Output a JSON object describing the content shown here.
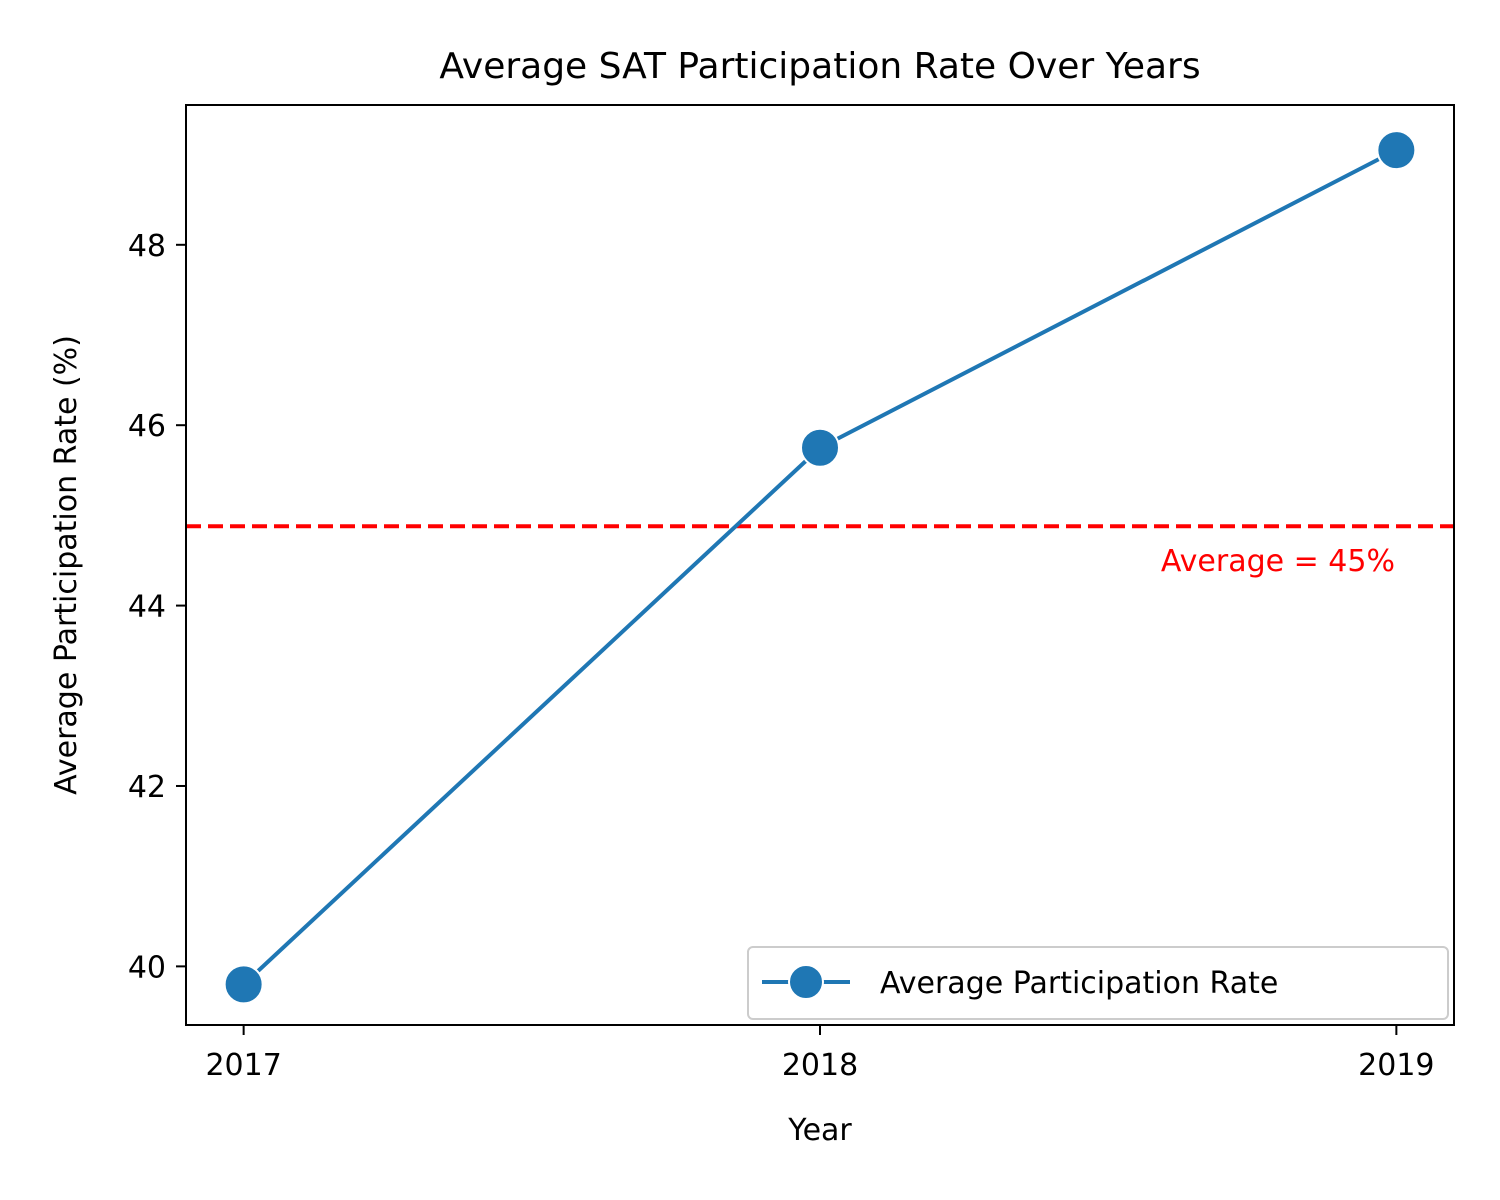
{
  "chart_data": {
    "type": "line",
    "title": "Average SAT Participation Rate Over Years",
    "xlabel": "Year",
    "ylabel": "Average Participation Rate (%)",
    "categories": [
      "2017",
      "2018",
      "2019"
    ],
    "series": [
      {
        "name": "Average Participation Rate",
        "values": [
          39.8,
          45.75,
          49.05
        ],
        "color": "#1f77b4"
      }
    ],
    "xlim": [
      2016.9,
      2019.1
    ],
    "ylim": [
      39.35,
      49.55
    ],
    "yticks": [
      40,
      42,
      44,
      46,
      48
    ],
    "reference_line": {
      "value": 44.88,
      "label": "Average = 45%",
      "color": "#ff0000",
      "style": "dashed"
    },
    "grid": false,
    "legend_position": "lower-right"
  }
}
